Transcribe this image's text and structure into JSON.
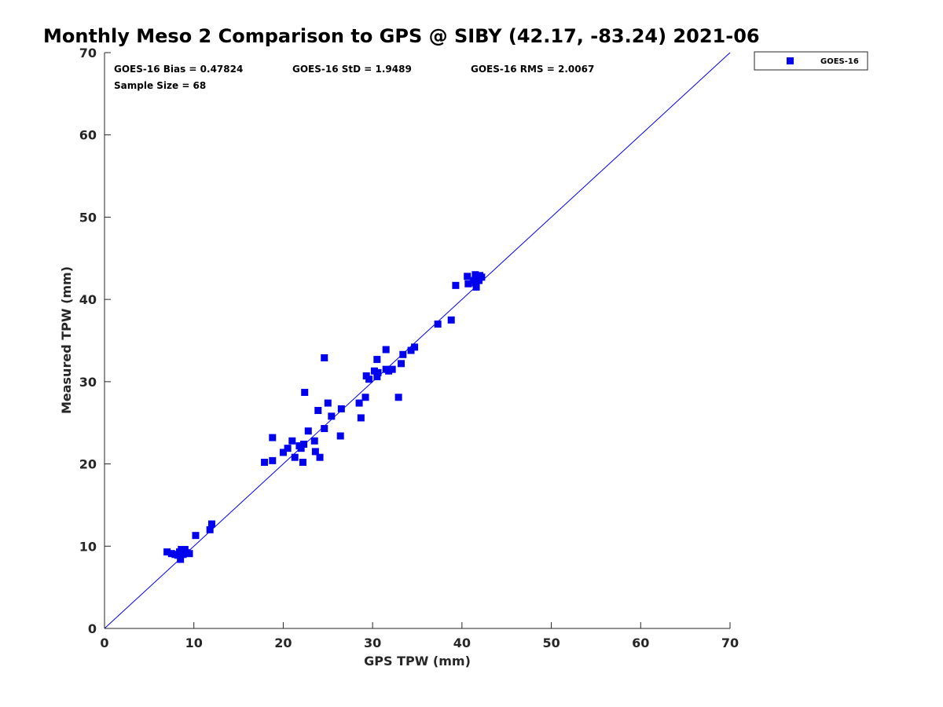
{
  "chart_data": {
    "type": "scatter",
    "title": "Monthly Meso 2 Comparison to GPS @ SIBY (42.17, -83.24) 2021-06",
    "xlabel": "GPS TPW (mm)",
    "ylabel": "Measured TPW (mm)",
    "xlim": [
      0,
      70
    ],
    "ylim": [
      0,
      70
    ],
    "xticks": [
      "0",
      "10",
      "20",
      "30",
      "40",
      "50",
      "60",
      "70"
    ],
    "yticks": [
      "0",
      "10",
      "20",
      "30",
      "40",
      "50",
      "60",
      "70"
    ],
    "grid": false,
    "legend_position": "outside-top-right",
    "reference_line": {
      "x": [
        0,
        70
      ],
      "y": [
        0,
        70
      ]
    },
    "annotations": [
      "GOES-16 Bias = 0.47824",
      "GOES-16 StD = 1.9489",
      "GOES-16 RMS = 2.0067",
      "Sample Size = 68"
    ],
    "series": [
      {
        "name": "GOES-16",
        "color": "#0000ee",
        "marker": "square",
        "points": [
          [
            7.0,
            9.3
          ],
          [
            7.5,
            9.1
          ],
          [
            7.9,
            9.0
          ],
          [
            8.2,
            8.9
          ],
          [
            8.4,
            9.3
          ],
          [
            8.5,
            8.4
          ],
          [
            8.6,
            9.6
          ],
          [
            8.8,
            9.0
          ],
          [
            9.0,
            9.6
          ],
          [
            9.2,
            9.2
          ],
          [
            9.5,
            9.1
          ],
          [
            10.2,
            11.3
          ],
          [
            11.8,
            12.0
          ],
          [
            12.0,
            12.7
          ],
          [
            17.9,
            20.2
          ],
          [
            18.8,
            23.2
          ],
          [
            18.8,
            20.4
          ],
          [
            20.0,
            21.4
          ],
          [
            20.5,
            21.9
          ],
          [
            21.0,
            22.8
          ],
          [
            21.3,
            20.8
          ],
          [
            21.8,
            22.2
          ],
          [
            22.0,
            21.9
          ],
          [
            22.2,
            20.2
          ],
          [
            22.3,
            22.4
          ],
          [
            22.4,
            28.7
          ],
          [
            22.8,
            24.0
          ],
          [
            23.5,
            22.8
          ],
          [
            23.6,
            21.5
          ],
          [
            23.9,
            26.5
          ],
          [
            24.1,
            20.8
          ],
          [
            24.6,
            24.3
          ],
          [
            24.6,
            32.9
          ],
          [
            25.0,
            27.4
          ],
          [
            25.4,
            25.8
          ],
          [
            26.4,
            23.4
          ],
          [
            26.5,
            26.7
          ],
          [
            28.5,
            27.4
          ],
          [
            28.7,
            25.6
          ],
          [
            29.2,
            28.1
          ],
          [
            29.3,
            30.7
          ],
          [
            29.6,
            30.3
          ],
          [
            30.2,
            31.3
          ],
          [
            30.5,
            30.6
          ],
          [
            30.5,
            32.7
          ],
          [
            30.6,
            31.1
          ],
          [
            31.5,
            33.9
          ],
          [
            31.5,
            31.5
          ],
          [
            31.8,
            31.3
          ],
          [
            32.2,
            31.5
          ],
          [
            32.9,
            28.1
          ],
          [
            33.2,
            32.2
          ],
          [
            33.4,
            33.3
          ],
          [
            34.3,
            33.8
          ],
          [
            34.7,
            34.2
          ],
          [
            37.3,
            37.0
          ],
          [
            38.8,
            37.5
          ],
          [
            39.3,
            41.7
          ],
          [
            40.6,
            42.8
          ],
          [
            40.7,
            41.9
          ],
          [
            41.3,
            42.3
          ],
          [
            41.5,
            43.0
          ],
          [
            41.5,
            42.0
          ],
          [
            41.6,
            41.5
          ],
          [
            41.8,
            42.6
          ],
          [
            42.0,
            42.9
          ],
          [
            42.2,
            42.7
          ],
          [
            41.9,
            42.3
          ]
        ]
      }
    ]
  }
}
